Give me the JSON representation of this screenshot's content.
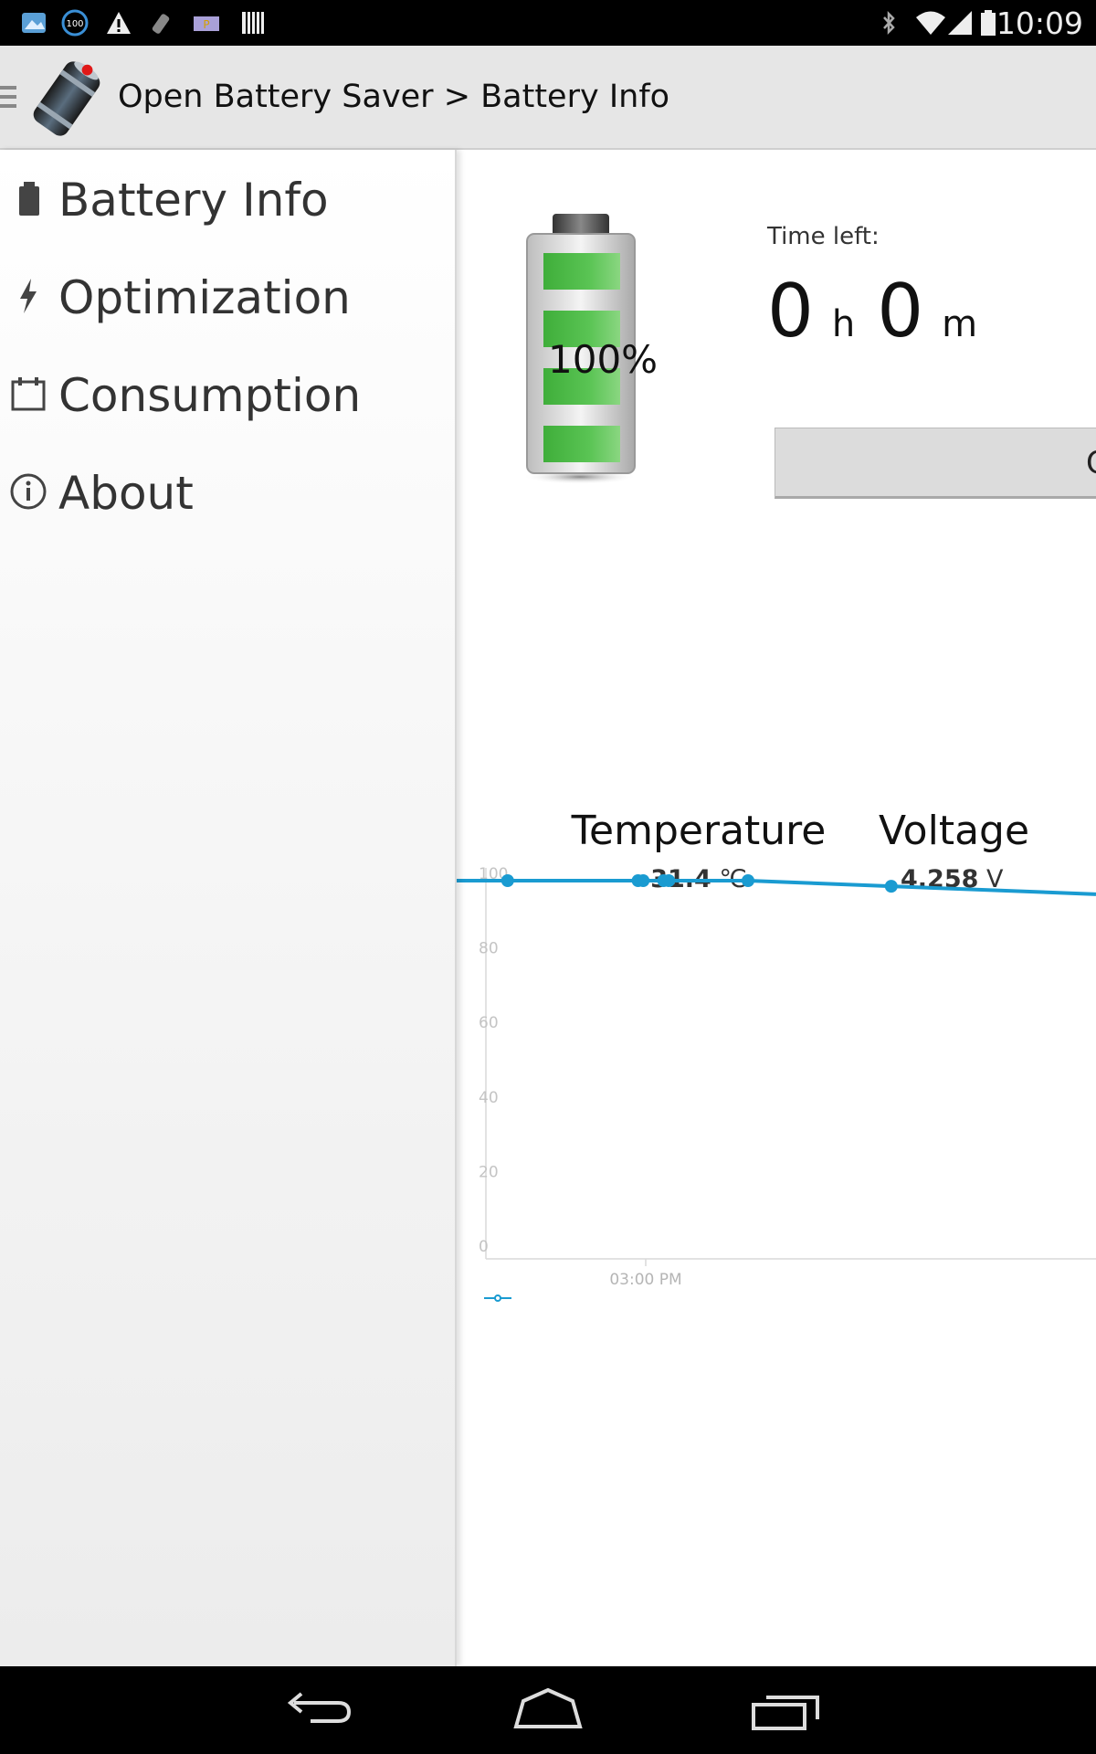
{
  "status_bar": {
    "time": "10:09",
    "notification_icons": [
      "photo-icon",
      "battery-100-icon",
      "warning-icon",
      "flashlight-icon",
      "parking-icon",
      "barcode-icon"
    ],
    "system_icons": [
      "bluetooth-icon",
      "wifi-icon",
      "signal-icon",
      "battery-icon"
    ],
    "notification_badge": "100"
  },
  "action_bar": {
    "title": "Open Battery Saver > Battery Info"
  },
  "drawer": {
    "items": [
      {
        "label": "Battery Info",
        "icon": "battery-icon"
      },
      {
        "label": "Optimization",
        "icon": "lightning-icon"
      },
      {
        "label": "Consumption",
        "icon": "calendar-icon"
      },
      {
        "label": "About",
        "icon": "info-icon"
      }
    ]
  },
  "battery": {
    "percent_label": "100%",
    "level": 1.0,
    "time_left_label": "Time left:",
    "hours": "0",
    "hours_unit": "h",
    "minutes": "0",
    "minutes_unit": "m",
    "button_label": "C"
  },
  "stats": {
    "temperature": {
      "label": "Temperature",
      "value": "31.4",
      "unit": "℃"
    },
    "voltage": {
      "label": "Voltage",
      "value": "4.258",
      "unit": "V"
    }
  },
  "chart_data": {
    "type": "line",
    "y_ticks": [
      "100",
      "80",
      "60",
      "40",
      "20",
      "0"
    ],
    "ylim": [
      0,
      100
    ],
    "x_tick_label": "03:00 PM",
    "series": [
      {
        "color": "#1a9bd1",
        "x_minutes_relative_to_3pm": [
          -102,
          -100,
          -98,
          -90,
          -54,
          -3,
          -1,
          7,
          9,
          40,
          96
        ],
        "values": [
          100,
          100,
          100,
          100,
          100,
          100,
          100,
          100,
          100,
          100,
          98.5
        ]
      }
    ],
    "grid": false,
    "legend_marker": true
  },
  "colors": {
    "accent": "#1a9bd1",
    "battery_green": "#3fae3a",
    "status_bar": "#000000",
    "action_bar": "#e6e6e6"
  }
}
